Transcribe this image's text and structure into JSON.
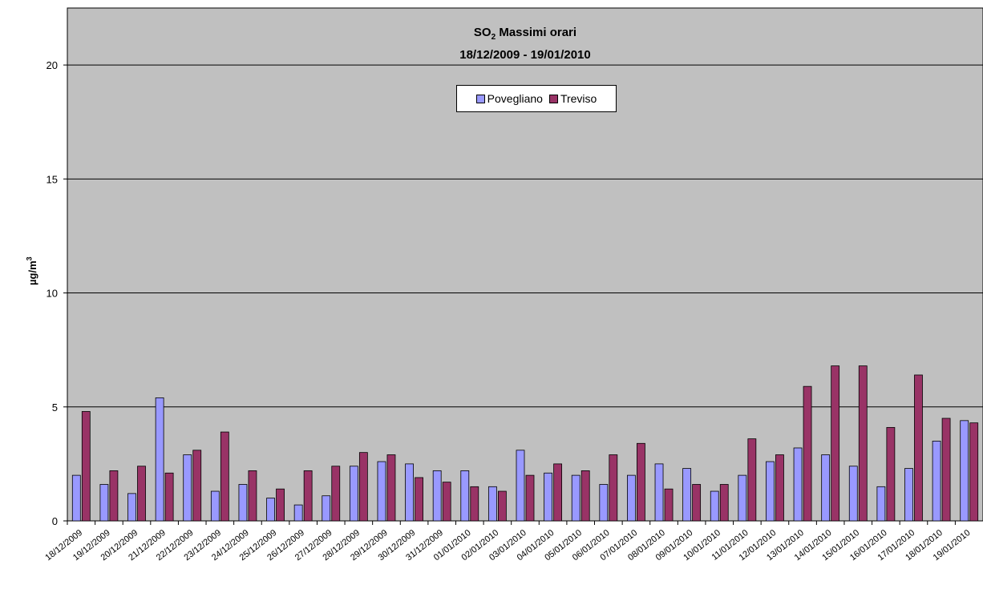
{
  "chart_data": {
    "type": "bar",
    "title": "SO",
    "title_sub": "2",
    "title_rest": " Massimi orari",
    "subtitle": "18/12/2009 - 19/01/2010",
    "ylabel": "µg/m",
    "ylabel_sup": "3",
    "xlabel": "",
    "ylim": [
      0,
      22.5
    ],
    "yticks": [
      0,
      5,
      10,
      15,
      20
    ],
    "grid": true,
    "legend_position": "top-center",
    "categories": [
      "18/12/2009",
      "19/12/2009",
      "20/12/2009",
      "21/12/2009",
      "22/12/2009",
      "23/12/2009",
      "24/12/2009",
      "25/12/2009",
      "26/12/2009",
      "27/12/2009",
      "28/12/2009",
      "29/12/2009",
      "30/12/2009",
      "31/12/2009",
      "01/01/2010",
      "02/01/2010",
      "03/01/2010",
      "04/01/2010",
      "05/01/2010",
      "06/01/2010",
      "07/01/2010",
      "08/01/2010",
      "09/01/2010",
      "10/01/2010",
      "11/01/2010",
      "12/01/2010",
      "13/01/2010",
      "14/01/2010",
      "15/01/2010",
      "16/01/2010",
      "17/01/2010",
      "18/01/2010",
      "19/01/2010"
    ],
    "series": [
      {
        "name": "Povegliano",
        "color": "#9999ff",
        "values": [
          2.0,
          1.6,
          1.2,
          5.4,
          2.9,
          1.3,
          1.6,
          1.0,
          0.7,
          1.1,
          2.4,
          2.6,
          2.5,
          2.2,
          2.2,
          1.5,
          3.1,
          2.1,
          2.0,
          1.6,
          2.0,
          2.5,
          2.3,
          1.3,
          2.0,
          2.6,
          3.2,
          2.9,
          2.4,
          1.5,
          2.3,
          3.5,
          4.4
        ]
      },
      {
        "name": "Treviso",
        "color": "#993366",
        "values": [
          4.8,
          2.2,
          2.4,
          2.1,
          3.1,
          3.9,
          2.2,
          1.4,
          2.2,
          2.4,
          3.0,
          2.9,
          1.9,
          1.7,
          1.5,
          1.3,
          2.0,
          2.5,
          2.2,
          2.9,
          3.4,
          1.4,
          1.6,
          1.6,
          3.6,
          2.9,
          5.9,
          6.8,
          6.8,
          4.1,
          6.4,
          4.5,
          4.3
        ]
      }
    ]
  }
}
